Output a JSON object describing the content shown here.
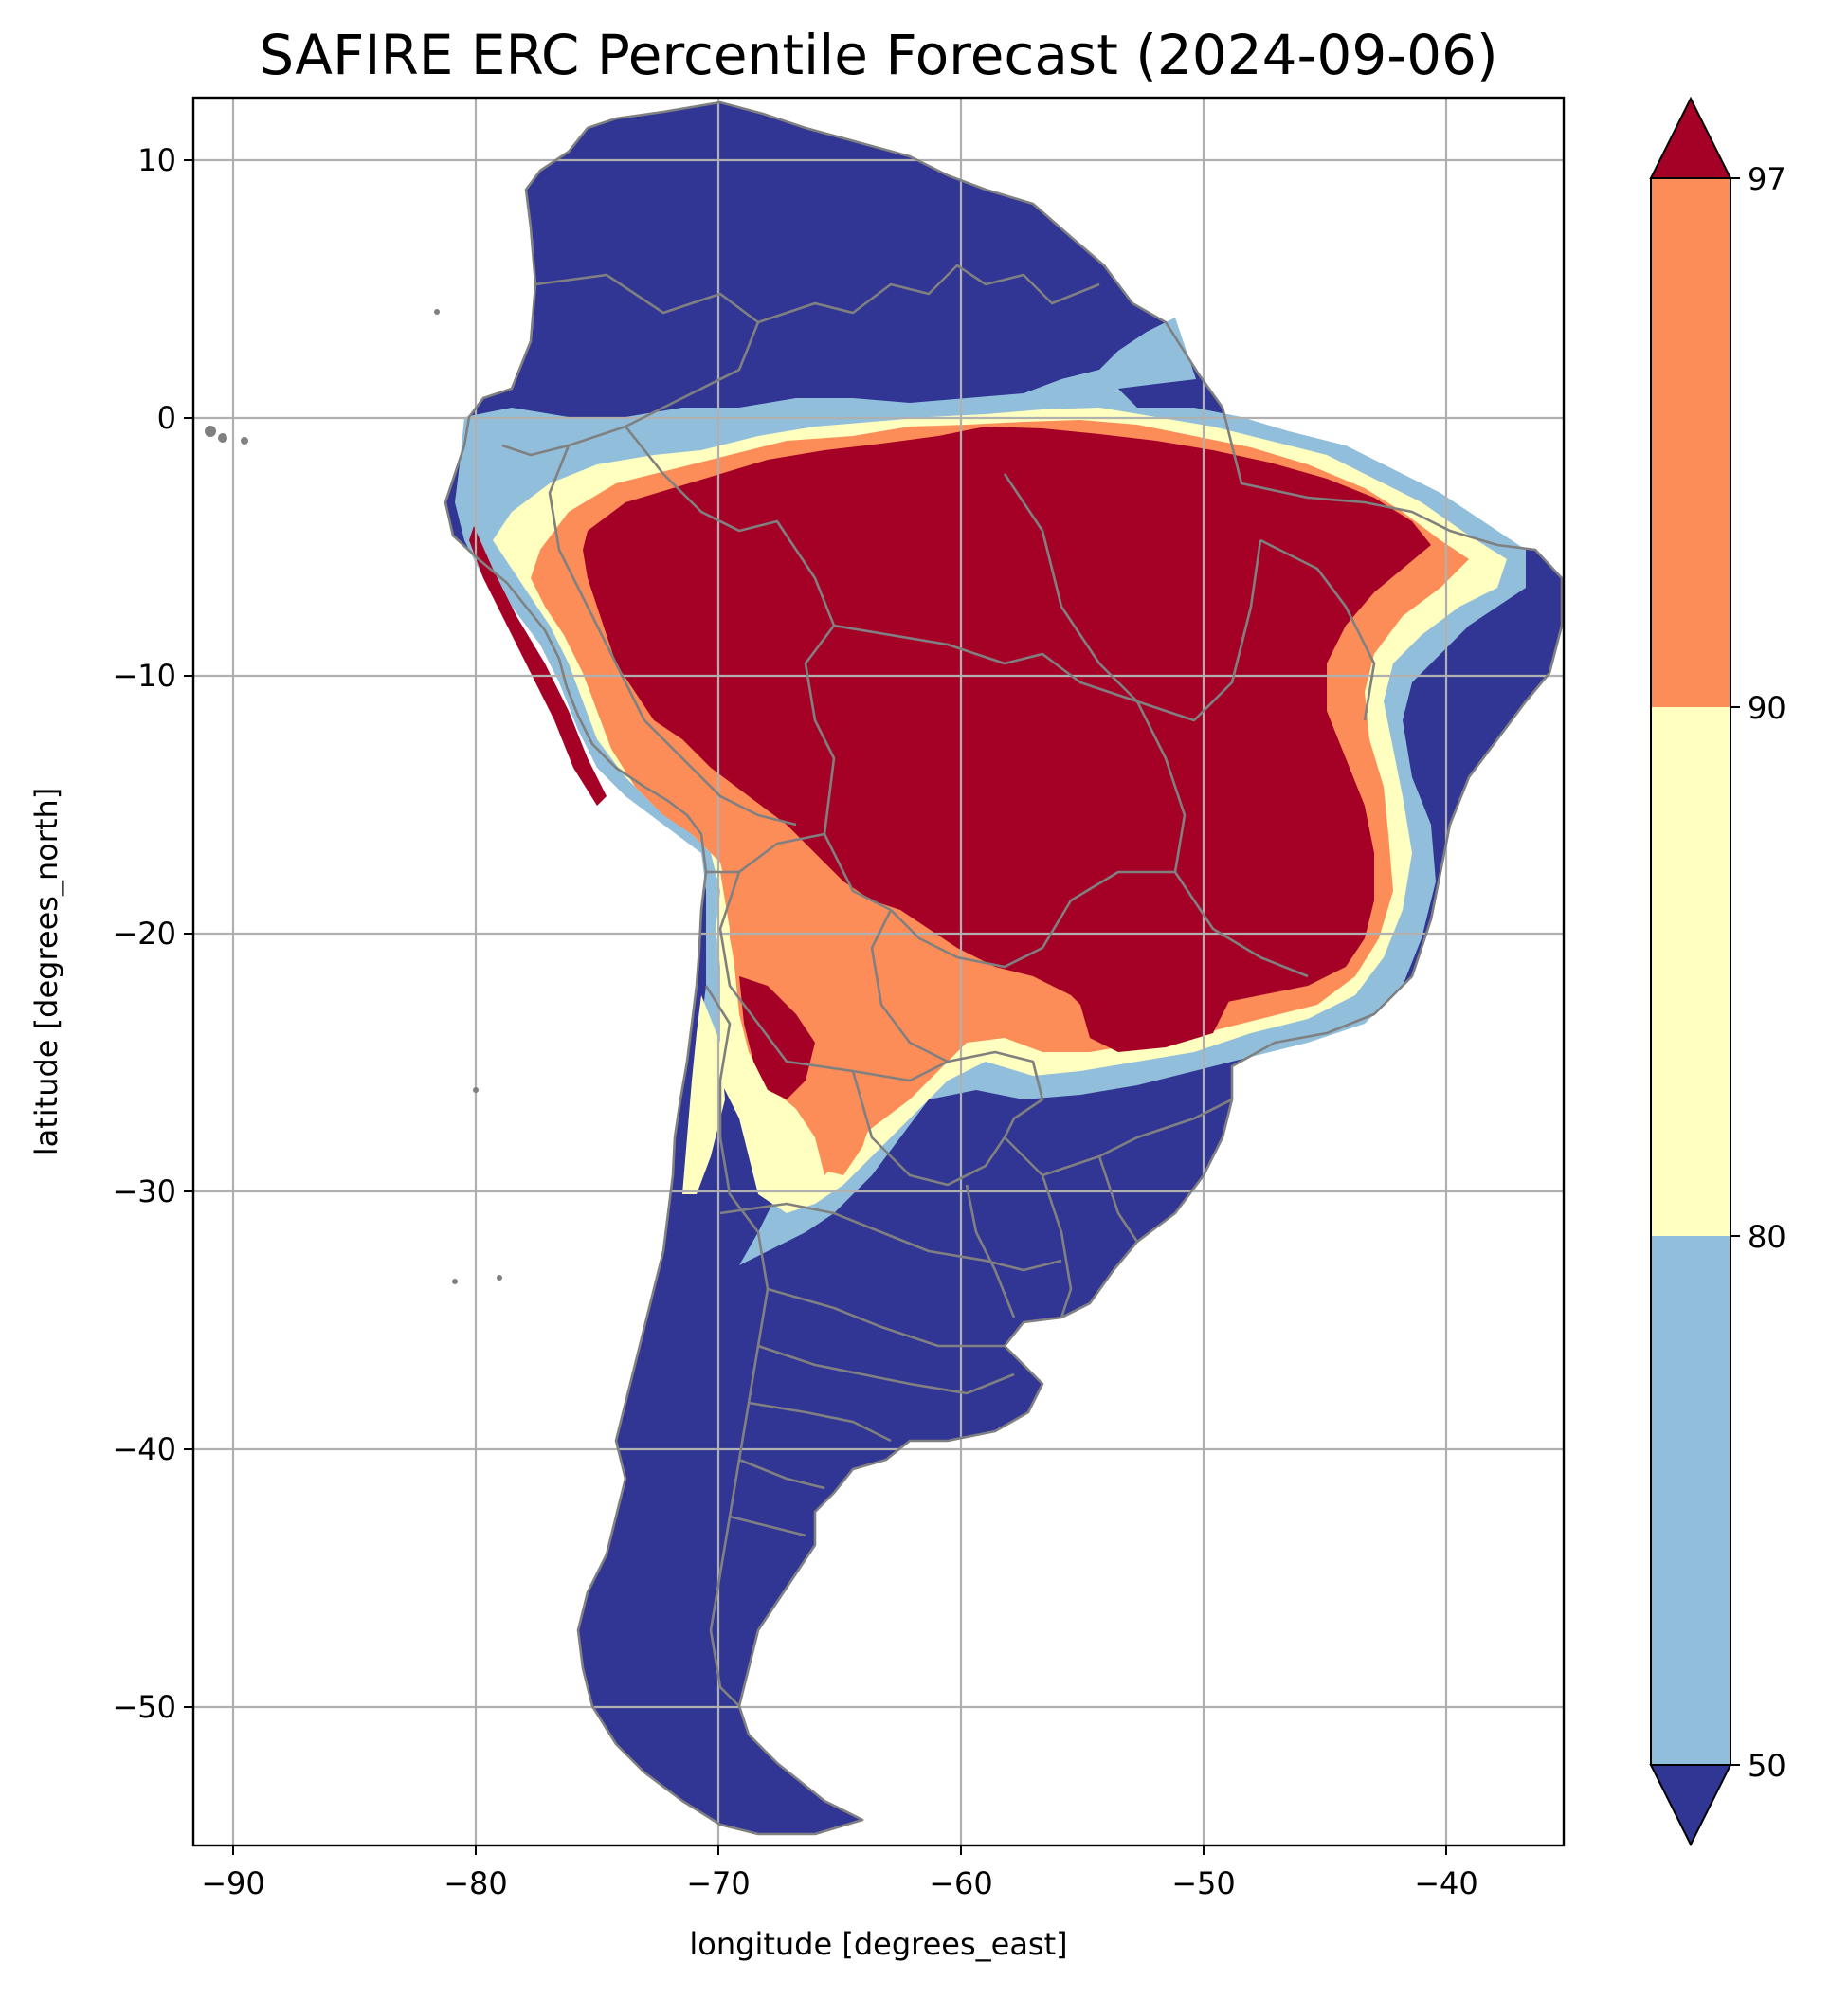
{
  "chart_data": {
    "type": "map",
    "title": "SAFIRE ERC Percentile Forecast (2024-09-06)",
    "xlabel": "longitude [degrees_east]",
    "ylabel": "latitude [degrees_north]",
    "xlim": [
      -91.5,
      -35
    ],
    "ylim": [
      -55.5,
      12.5
    ],
    "xticks": [
      -90,
      -80,
      -70,
      -60,
      -50,
      -40
    ],
    "yticks": [
      10,
      0,
      -10,
      -20,
      -30,
      -40,
      -50
    ],
    "xtick_labels": [
      "−90",
      "−80",
      "−70",
      "−60",
      "−50",
      "−40"
    ],
    "ytick_labels": [
      "10",
      "0",
      "−10",
      "−20",
      "−30",
      "−40",
      "−50"
    ],
    "grid": true,
    "colorbar": {
      "orientation": "vertical",
      "position": "right",
      "extend": "both",
      "boundaries": [
        50,
        80,
        90,
        97
      ],
      "tick_labels": [
        "50",
        "80",
        "90",
        "97"
      ],
      "colors": {
        "below_50": "#313695",
        "50_80": "#91bfdb",
        "80_90": "#ffffbf",
        "90_97": "#fc8d59",
        "above_97": "#a50026"
      }
    },
    "regions": [
      {
        "name": "northern South America",
        "category": "below_50"
      },
      {
        "name": "Amazon / central Brazil",
        "category": "above_97"
      },
      {
        "name": "Andes foothills band",
        "category": "90_97"
      },
      {
        "name": "Paraguay / northern Argentina",
        "category": "90_97"
      },
      {
        "name": "eastern Brazil coast",
        "category": "below_50"
      },
      {
        "name": "southern Brazil / Uruguay / Argentina / Patagonia",
        "category": "below_50"
      }
    ]
  }
}
